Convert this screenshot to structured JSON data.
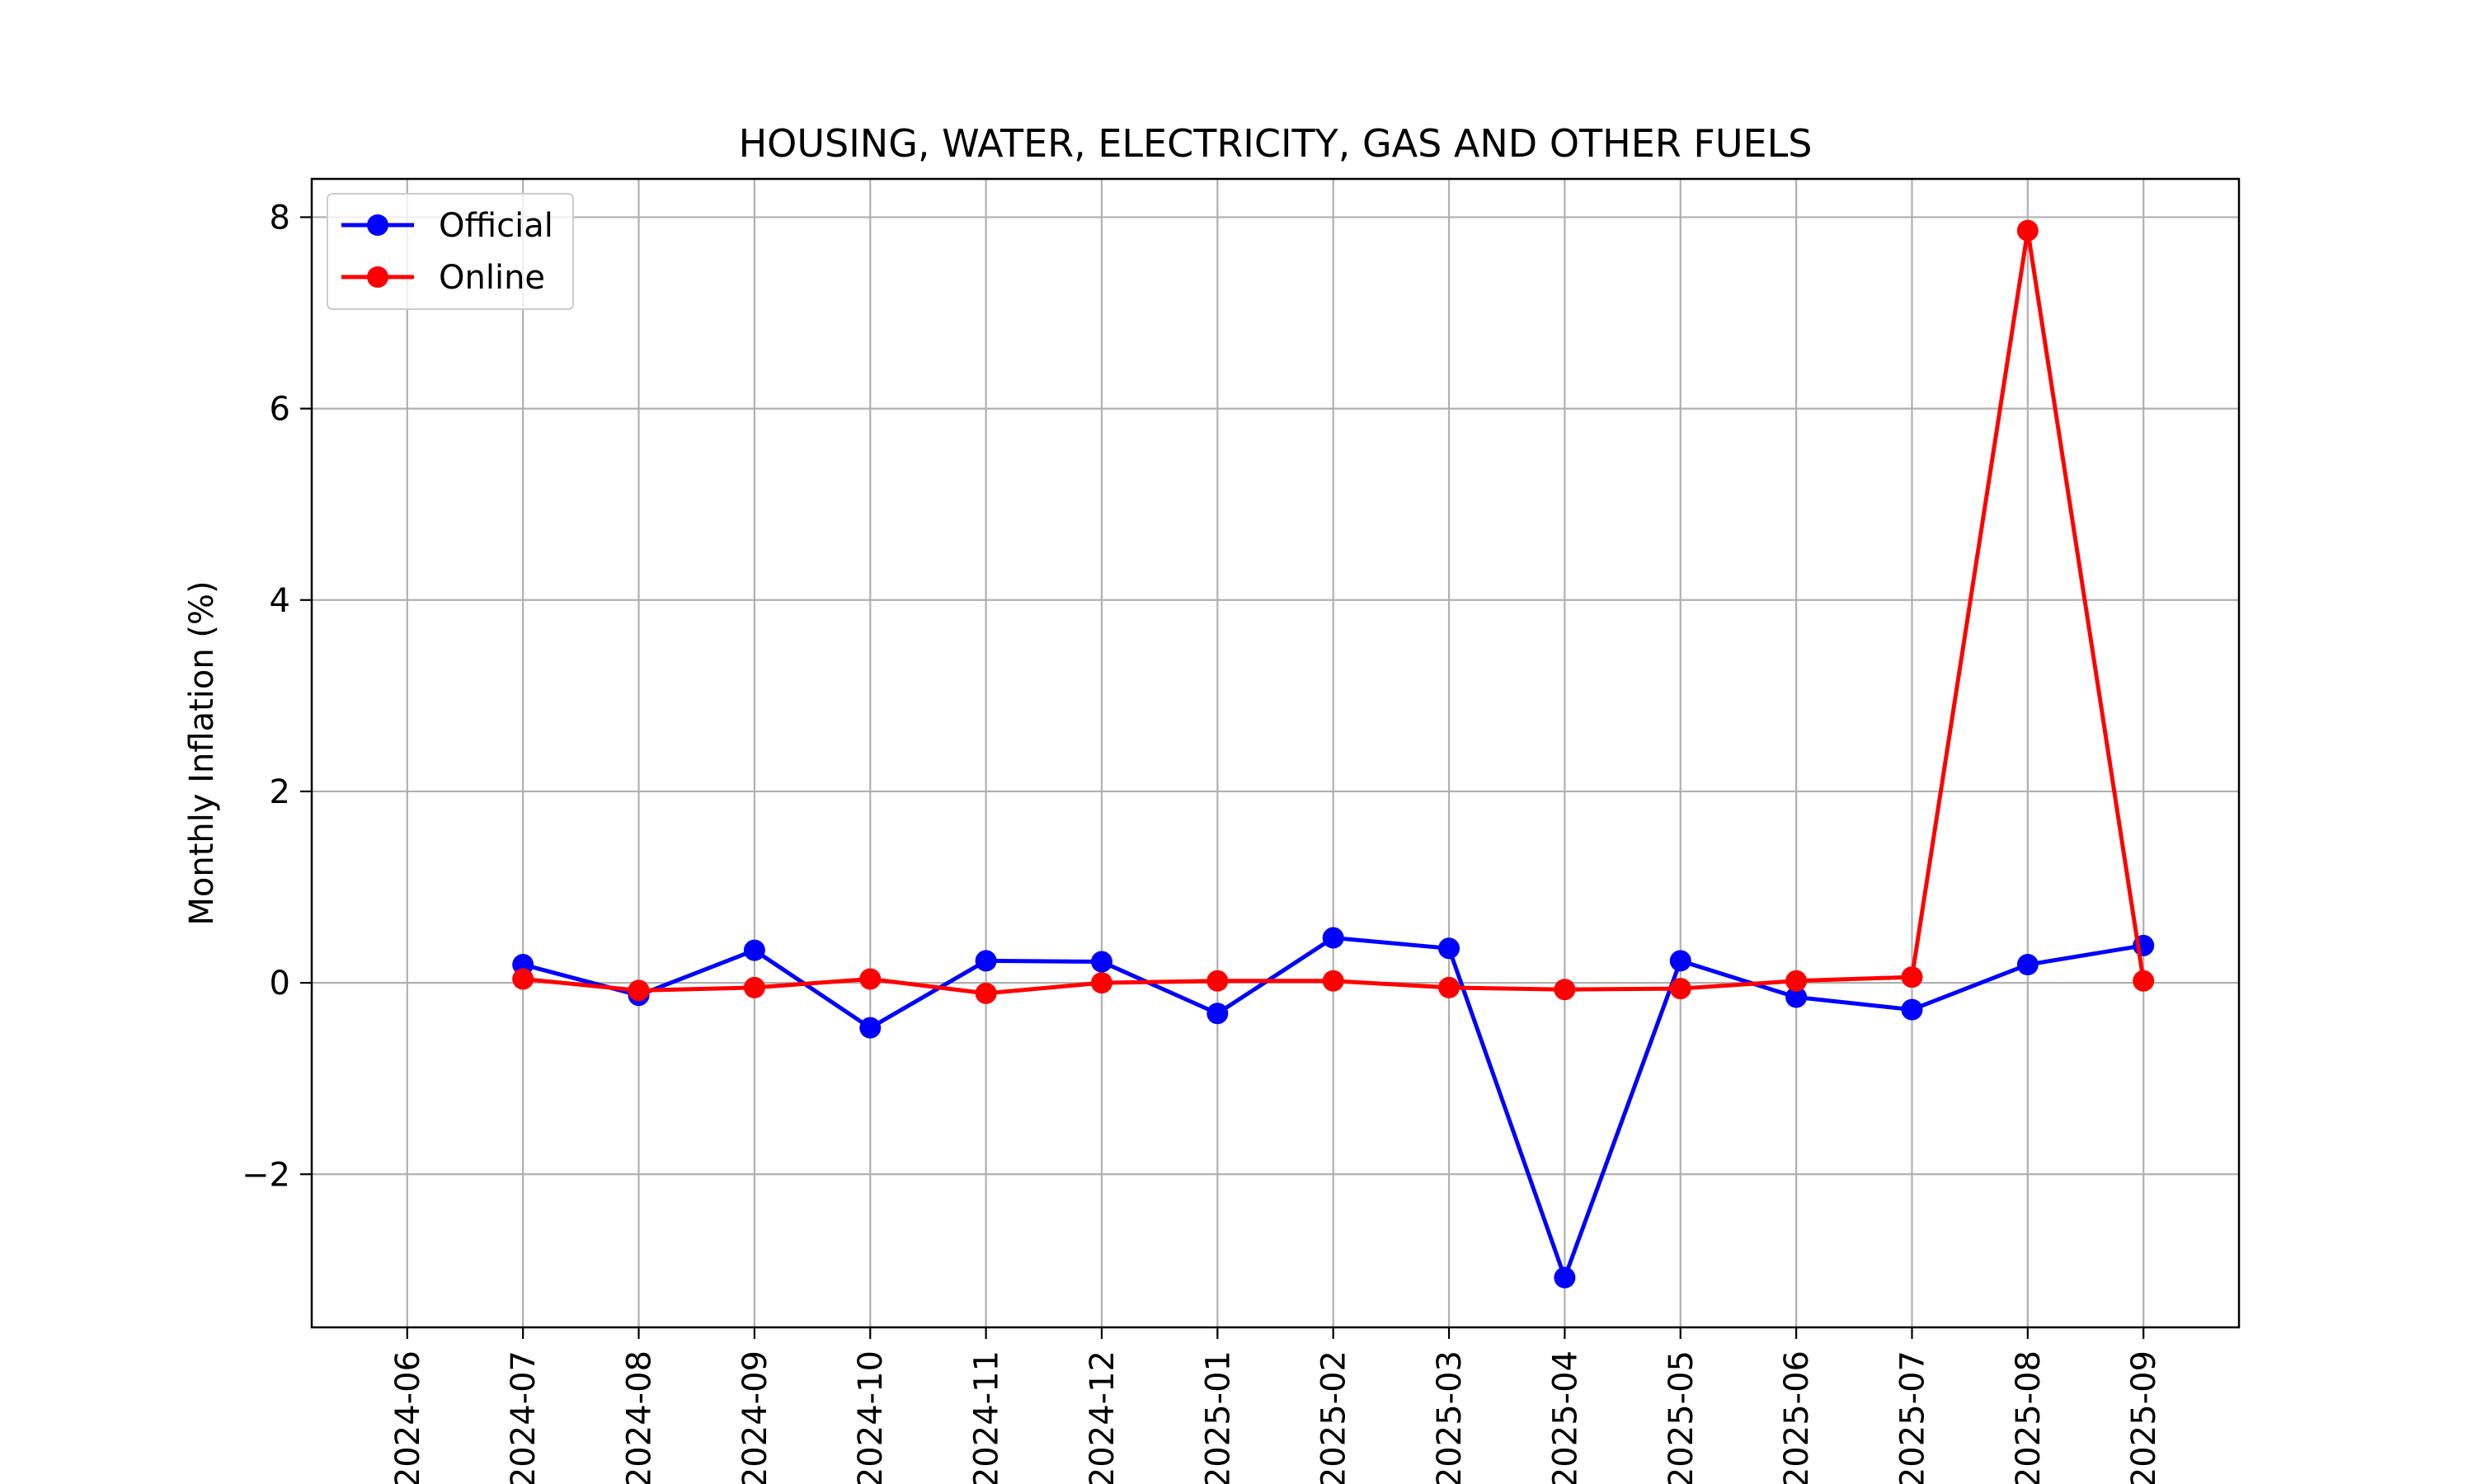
{
  "chart_data": {
    "type": "line",
    "title": "HOUSING, WATER, ELECTRICITY, GAS AND OTHER FUELS",
    "xlabel": "",
    "ylabel": "Monthly Inflation (%)",
    "x_ticks": [
      "2024-06",
      "2024-07",
      "2024-08",
      "2024-09",
      "2024-10",
      "2024-11",
      "2024-12",
      "2025-01",
      "2025-02",
      "2025-03",
      "2025-04",
      "2025-05",
      "2025-06",
      "2025-07",
      "2025-08",
      "2025-09"
    ],
    "x": [
      "2024-07",
      "2024-08",
      "2024-09",
      "2024-10",
      "2024-11",
      "2024-12",
      "2025-01",
      "2025-02",
      "2025-03",
      "2025-04",
      "2025-05",
      "2025-06",
      "2025-07",
      "2025-08",
      "2025-09"
    ],
    "y_ticks": [
      -2,
      0,
      2,
      4,
      6,
      8
    ],
    "ylim": [
      -3.6,
      8.4
    ],
    "grid": true,
    "legend_position": "top-left",
    "series": [
      {
        "name": "Official",
        "color": "#0000ff",
        "marker": "circle",
        "values": [
          0.19,
          -0.13,
          0.34,
          -0.47,
          0.23,
          0.22,
          -0.32,
          0.47,
          0.36,
          -3.08,
          0.23,
          -0.15,
          -0.28,
          0.19,
          0.39
        ]
      },
      {
        "name": "Online",
        "color": "#ff0000",
        "marker": "circle",
        "values": [
          0.04,
          -0.08,
          -0.05,
          0.04,
          -0.11,
          0.0,
          0.02,
          0.02,
          -0.05,
          -0.07,
          -0.06,
          0.02,
          0.06,
          7.86,
          0.02
        ]
      }
    ]
  }
}
